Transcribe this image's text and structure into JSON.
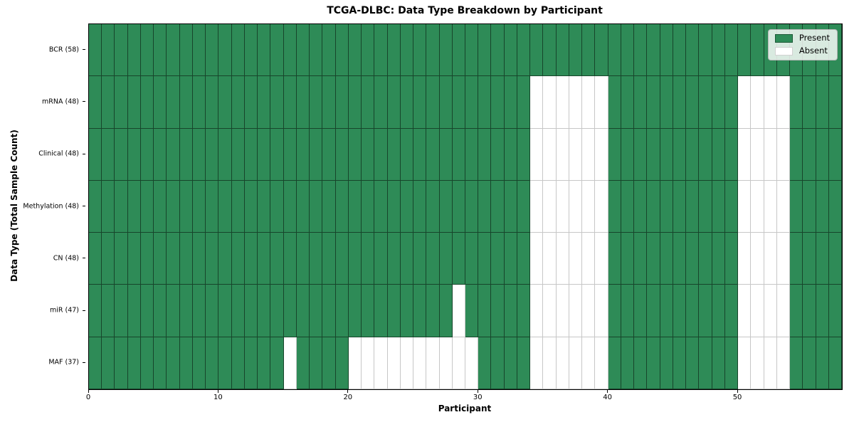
{
  "chart_data": {
    "type": "heatmap",
    "title": "TCGA-DLBC: Data Type Breakdown by Participant",
    "xlabel": "Participant",
    "ylabel": "Data Type (Total Sample Count)",
    "n_columns": 58,
    "x_ticks": [
      0,
      10,
      20,
      30,
      40,
      50
    ],
    "grid": true,
    "colors": {
      "present": "#2e8b57",
      "absent": "#ffffff"
    },
    "legend": {
      "position": "upper right",
      "entries": [
        {
          "label": "Present",
          "key": "present",
          "color": "#2e8b57"
        },
        {
          "label": "Absent",
          "key": "absent",
          "color": "#ffffff"
        }
      ]
    },
    "rows": [
      {
        "label": "BCR (58)",
        "present_count": 58,
        "absent_ranges": []
      },
      {
        "label": "mRNA (48)",
        "present_count": 48,
        "absent_ranges": [
          [
            34,
            40
          ],
          [
            50,
            54
          ]
        ]
      },
      {
        "label": "Clinical (48)",
        "present_count": 48,
        "absent_ranges": [
          [
            34,
            40
          ],
          [
            50,
            54
          ]
        ]
      },
      {
        "label": "Methylation (48)",
        "present_count": 48,
        "absent_ranges": [
          [
            34,
            40
          ],
          [
            50,
            54
          ]
        ]
      },
      {
        "label": "CN (48)",
        "present_count": 48,
        "absent_ranges": [
          [
            34,
            40
          ],
          [
            50,
            54
          ]
        ]
      },
      {
        "label": "miR (47)",
        "present_count": 47,
        "absent_ranges": [
          [
            28,
            29
          ],
          [
            34,
            40
          ],
          [
            50,
            54
          ]
        ]
      },
      {
        "label": "MAF (37)",
        "present_count": 37,
        "absent_ranges": [
          [
            15,
            16
          ],
          [
            20,
            30
          ],
          [
            34,
            40
          ],
          [
            50,
            54
          ]
        ]
      }
    ]
  }
}
